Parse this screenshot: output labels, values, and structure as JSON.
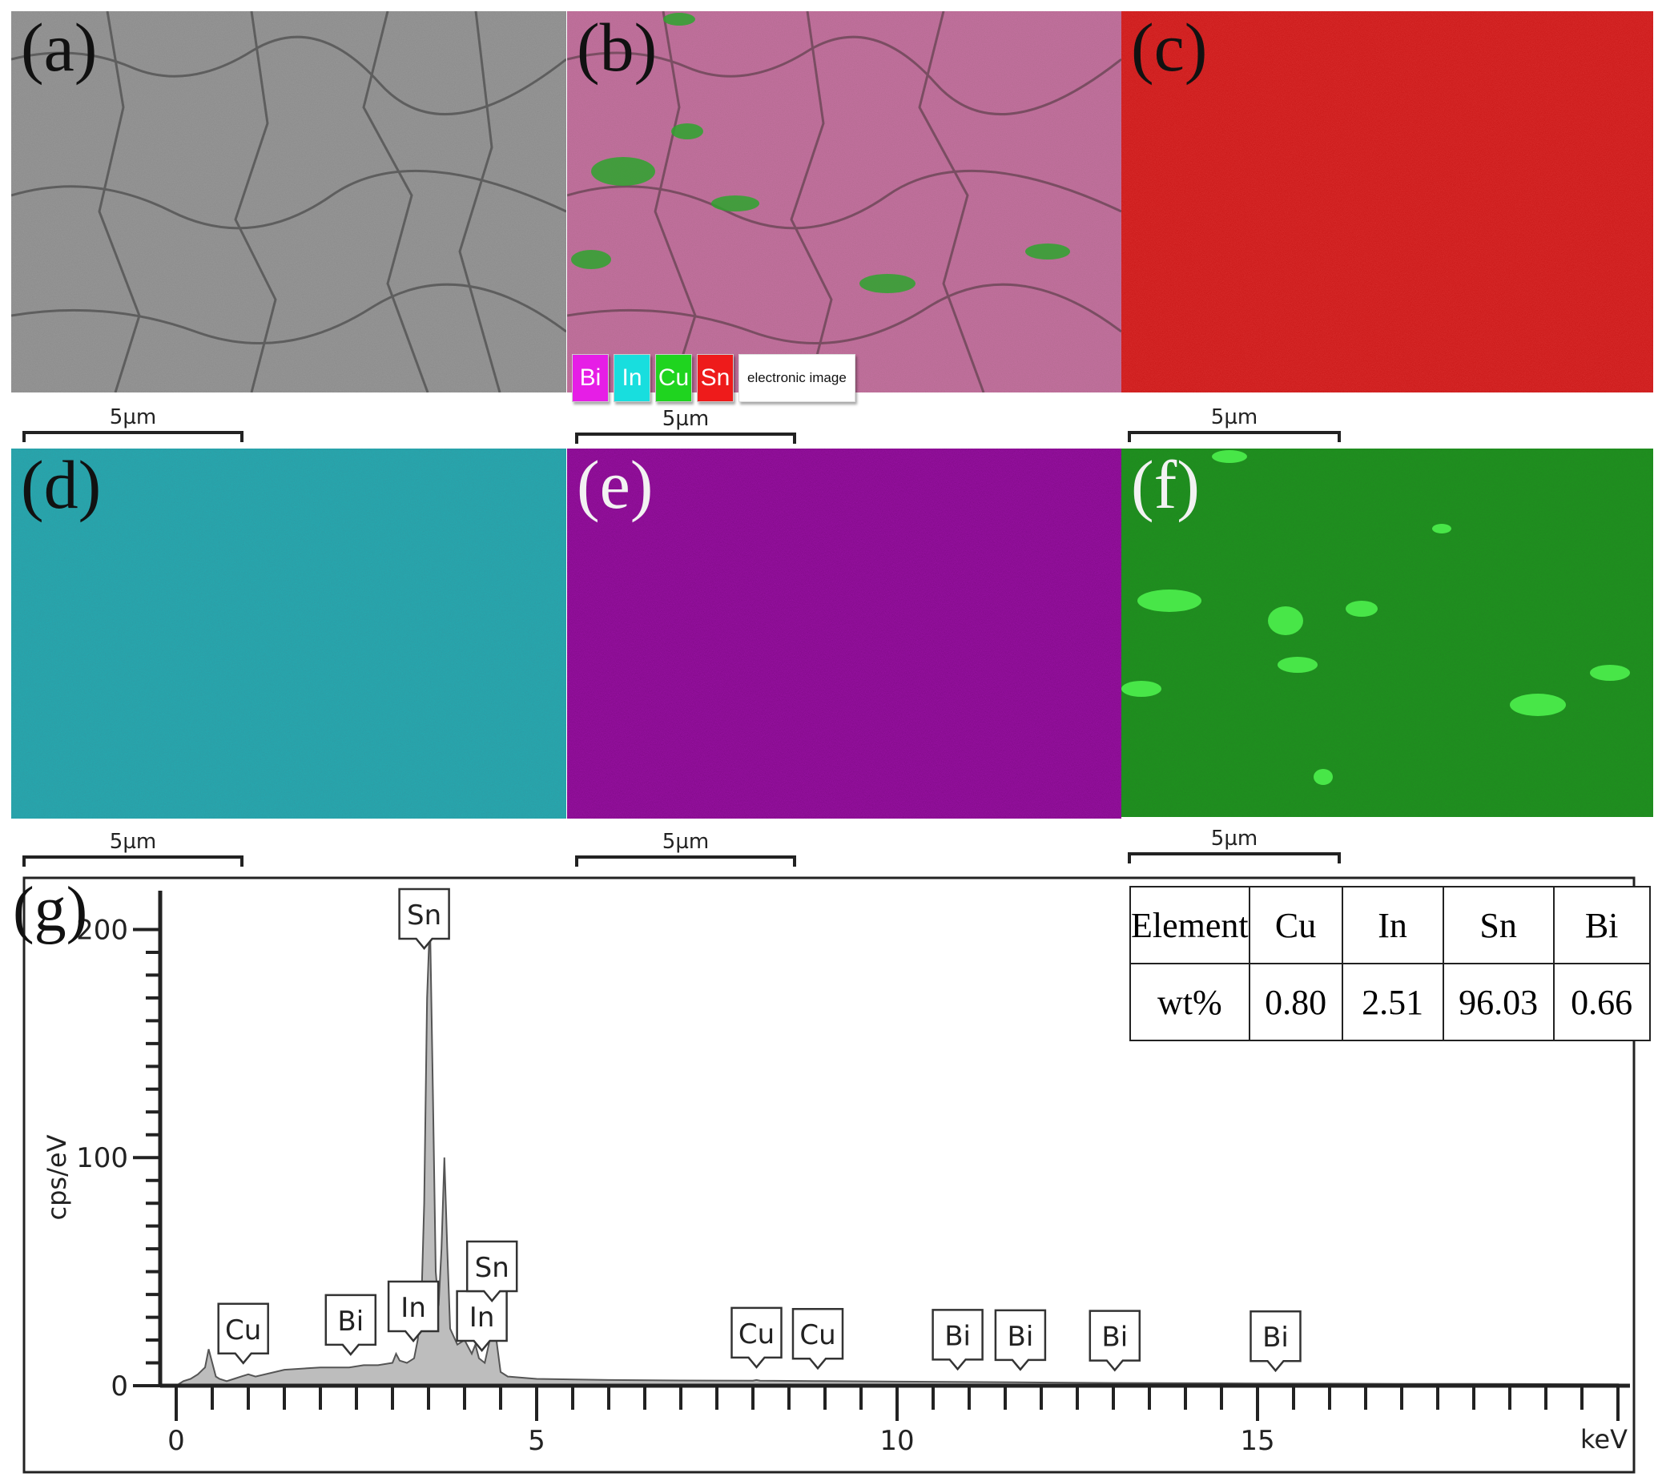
{
  "panels": {
    "a": {
      "label": "(a)",
      "scale": "5µm"
    },
    "b": {
      "label": "(b)",
      "scale": "5µm"
    },
    "c": {
      "label": "(c)",
      "scale": "5µm"
    },
    "d": {
      "label": "(d)",
      "scale": "5µm"
    },
    "e": {
      "label": "(e)",
      "scale": "5µm"
    },
    "f": {
      "label": "(f)",
      "scale": "5µm"
    },
    "g": {
      "label": "(g)"
    }
  },
  "legend": {
    "items": [
      {
        "label": "Bi",
        "color": "#e61ee6"
      },
      {
        "label": "In",
        "color": "#18dede"
      },
      {
        "label": "Cu",
        "color": "#1fd41f"
      },
      {
        "label": "Sn",
        "color": "#ee1b1b"
      }
    ],
    "image_label": "electronic image"
  },
  "map_colors": {
    "c": "#c41010",
    "d": "#1fb3b8",
    "e": "#a414b0",
    "f": "#1b9e1b"
  },
  "table": {
    "headers": [
      "Element",
      "Cu",
      "In",
      "Sn",
      "Bi"
    ],
    "row": [
      "wt%",
      "0.80",
      "2.51",
      "96.03",
      "0.66"
    ]
  },
  "chart_data": {
    "type": "area",
    "xlabel": "keV",
    "ylabel": "cps/eV",
    "xlim": [
      0,
      20
    ],
    "ylim": [
      0,
      210
    ],
    "xticks": [
      0,
      5,
      10,
      15
    ],
    "yticks": [
      0,
      100,
      200
    ],
    "x": [
      0,
      0.1,
      0.2,
      0.3,
      0.4,
      0.45,
      0.5,
      0.55,
      0.6,
      0.7,
      0.8,
      0.9,
      1.0,
      1.1,
      1.5,
      2.0,
      2.4,
      2.6,
      2.8,
      3.0,
      3.05,
      3.1,
      3.2,
      3.3,
      3.35,
      3.4,
      3.44,
      3.48,
      3.52,
      3.56,
      3.6,
      3.64,
      3.68,
      3.72,
      3.76,
      3.8,
      3.9,
      4.0,
      4.1,
      4.15,
      4.2,
      4.28,
      4.35,
      4.4,
      4.5,
      4.6,
      5.0,
      6.0,
      7.0,
      8.0,
      8.05,
      8.1,
      9.0,
      10.0,
      11.0,
      12.0,
      13.0,
      14.0,
      15.0,
      16.0,
      17.0,
      18.0,
      19.0,
      20.0
    ],
    "y": [
      0,
      2,
      3,
      5,
      8,
      16,
      10,
      4,
      3,
      2,
      3,
      4,
      5,
      4,
      7,
      8,
      8,
      9,
      9,
      10,
      14,
      11,
      10,
      12,
      20,
      35,
      80,
      170,
      205,
      130,
      50,
      35,
      60,
      100,
      60,
      25,
      18,
      20,
      14,
      18,
      12,
      10,
      20,
      30,
      6,
      4,
      3,
      2.5,
      2.3,
      2.2,
      2.5,
      2.2,
      2.0,
      1.8,
      1.6,
      1.4,
      1.2,
      1.1,
      1.0,
      0.9,
      0.8,
      0.8,
      0.7,
      0.6
    ],
    "peak_labels": [
      {
        "label": "Cu",
        "x": 0.93
      },
      {
        "label": "Bi",
        "x": 2.42
      },
      {
        "label": "In",
        "x": 3.29
      },
      {
        "label": "Sn",
        "x": 3.44
      },
      {
        "label": "In",
        "x": 4.24
      },
      {
        "label": "Sn",
        "x": 4.38
      },
      {
        "label": "Cu",
        "x": 8.05
      },
      {
        "label": "Cu",
        "x": 8.9
      },
      {
        "label": "Bi",
        "x": 10.84
      },
      {
        "label": "Bi",
        "x": 11.71
      },
      {
        "label": "Bi",
        "x": 13.02
      },
      {
        "label": "Bi",
        "x": 15.25
      }
    ]
  }
}
